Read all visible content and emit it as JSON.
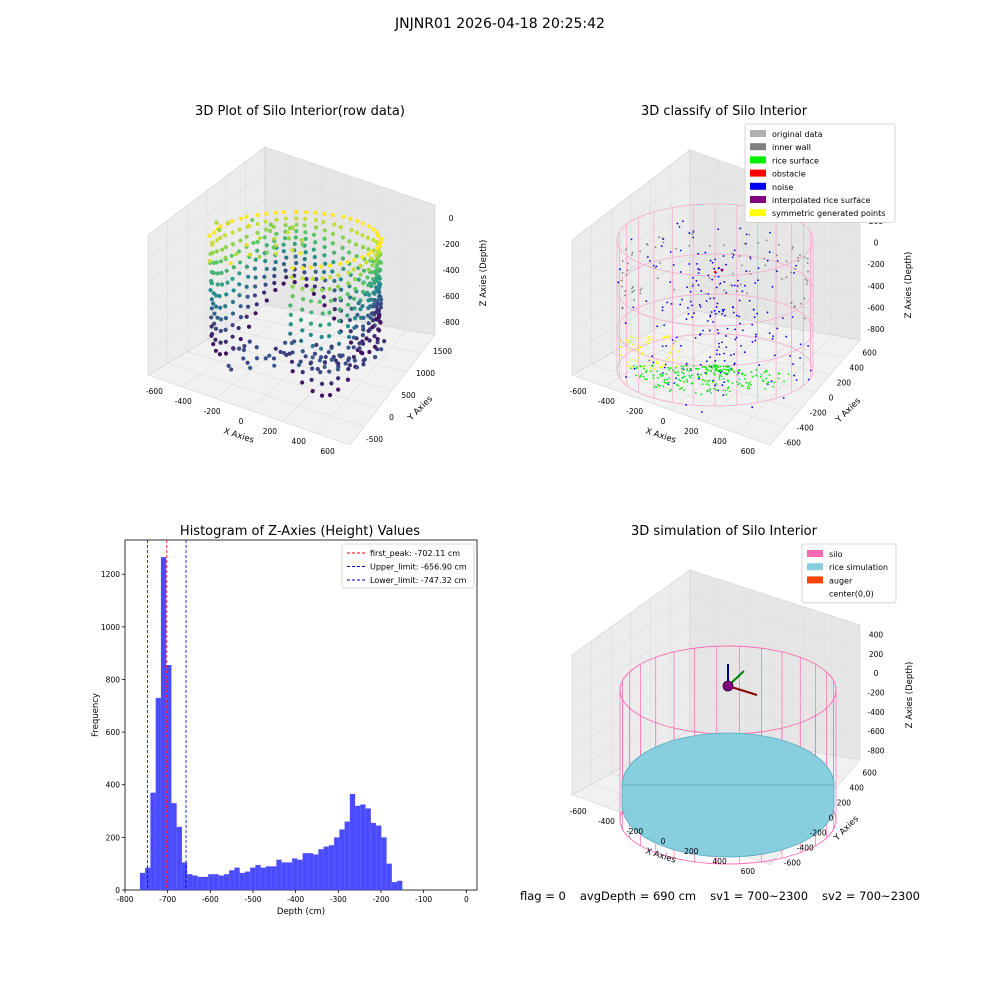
{
  "figure_title": "JNJNR01 2026-04-18 20:25:42",
  "panels": {
    "raw": {
      "title": "3D Plot of Silo Interior(row data)"
    },
    "classify": {
      "title": "3D classify of Silo Interior"
    },
    "hist": {
      "title": "Histogram of Z-Axies (Height) Values"
    },
    "sim": {
      "title": "3D simulation of Silo Interior"
    }
  },
  "footer": {
    "flag": "flag = 0",
    "avg_depth": "avgDepth = 690 cm",
    "sv1": "sv1 = 700~2300",
    "sv2": "sv2 = 700~2300"
  },
  "colors": {
    "hist_bar": "#4b4bff",
    "first_peak_line": "#ff0000",
    "limit_line": "#0000cc",
    "silo": "#ff69b4",
    "rice_simulation": "#87cedf",
    "auger": "#ff4500"
  },
  "chart_data": [
    {
      "type": "scatter",
      "title": "3D Plot of Silo Interior(row data)",
      "xlabel": "X Axies",
      "ylabel": "Y Axies",
      "zlabel": "Z Axies (Depth)",
      "xticks": [
        "-600",
        "-400",
        "-200",
        "0",
        "200",
        "400",
        "600"
      ],
      "yticks": [
        "-500",
        "0",
        "500",
        "1000",
        "1500"
      ],
      "zticks": [
        "0",
        "-200",
        "-400",
        "-600",
        "-800"
      ],
      "colormap": "viridis"
    },
    {
      "type": "scatter",
      "title": "3D classify of Silo Interior",
      "xlabel": "X Axies",
      "ylabel": "Y Axies",
      "zlabel": "Z Axies (Depth)",
      "xticks": [
        "-600",
        "-400",
        "-200",
        "0",
        "200",
        "400",
        "600"
      ],
      "yticks": [
        "-600",
        "-400",
        "-200",
        "0",
        "200",
        "400",
        "600"
      ],
      "zticks": [
        "200",
        "0",
        "-200",
        "-400",
        "-600",
        "-800"
      ],
      "legend": [
        {
          "label": "original data",
          "color": "#b0b0b0"
        },
        {
          "label": "inner wall",
          "color": "#808080"
        },
        {
          "label": "rice surface",
          "color": "#00ee00"
        },
        {
          "label": "obstacle",
          "color": "#ff0000"
        },
        {
          "label": "noise",
          "color": "#0000ee"
        },
        {
          "label": "interpolated rice surface",
          "color": "#800080"
        },
        {
          "label": "symmetric generated points",
          "color": "#ffff00"
        }
      ]
    },
    {
      "type": "bar",
      "title": "Histogram of Z-Axies (Height) Values",
      "xlabel": "Depth (cm)",
      "ylabel": "Frequency",
      "xlim": [
        -800,
        25
      ],
      "ylim": [
        0,
        1330
      ],
      "xticks": [
        -800,
        -700,
        -600,
        -500,
        -400,
        -300,
        -200,
        -100,
        0
      ],
      "yticks": [
        0,
        200,
        400,
        600,
        800,
        1000,
        1200
      ],
      "bin_start": -765,
      "bin_width": 12.3,
      "values": [
        65,
        85,
        370,
        730,
        1265,
        855,
        330,
        240,
        105,
        60,
        55,
        50,
        50,
        60,
        60,
        55,
        60,
        75,
        85,
        65,
        70,
        85,
        95,
        85,
        90,
        90,
        115,
        105,
        105,
        120,
        115,
        140,
        140,
        135,
        155,
        165,
        170,
        200,
        230,
        260,
        365,
        320,
        325,
        310,
        255,
        245,
        200,
        100,
        30,
        35
      ],
      "vlines": [
        {
          "label": "first_peak: -702.11 cm",
          "x": -702.11,
          "color": "#ff0000"
        },
        {
          "label": "Upper_limit: -656.90 cm",
          "x": -656.9,
          "color": "#0000cc"
        },
        {
          "label": "Lower_limit: -747.32 cm",
          "x": -747.32,
          "color": "#0000cc"
        }
      ]
    },
    {
      "type": "scatter",
      "title": "3D simulation of Silo Interior",
      "xlabel": "X Axies",
      "ylabel": "Y Axies",
      "zlabel": "Z Axies (Depth)",
      "xticks": [
        "-600",
        "-400",
        "-200",
        "0",
        "200",
        "400",
        "600"
      ],
      "yticks": [
        "-600",
        "-400",
        "-200",
        "0",
        "200",
        "400",
        "600"
      ],
      "zticks": [
        "400",
        "200",
        "0",
        "-200",
        "-400",
        "-600",
        "-800"
      ],
      "legend": [
        {
          "label": "silo",
          "color": "#ff69b4"
        },
        {
          "label": "rice simulation",
          "color": "#87cedf"
        },
        {
          "label": "auger",
          "color": "#ff4500"
        },
        {
          "label": "center(0,0)",
          "color": ""
        }
      ]
    }
  ]
}
